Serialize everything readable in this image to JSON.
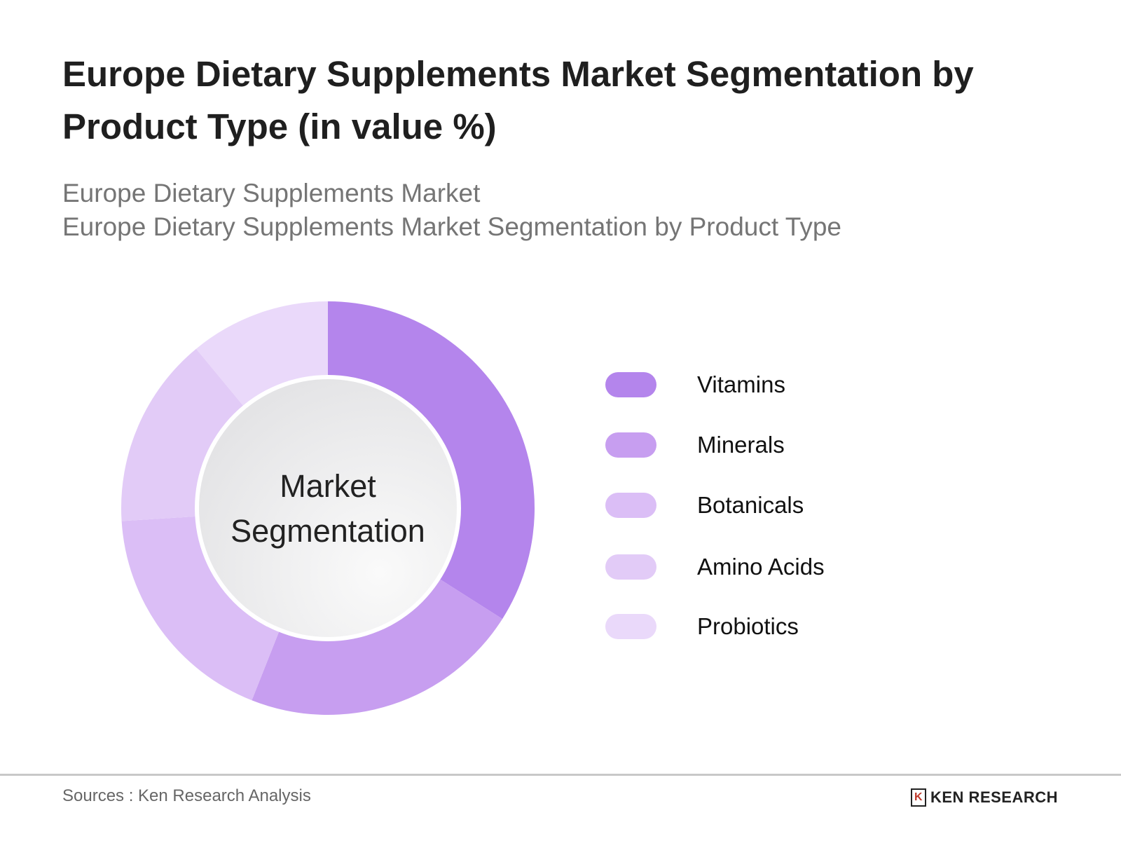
{
  "title": "Europe Dietary Supplements Market Segmentation by Product Type (in value %)",
  "subtitle_1": "Europe Dietary Supplements Market",
  "subtitle_2": "Europe Dietary Supplements Market Segmentation by Product Type",
  "center_label_1": "Market",
  "center_label_2": "Segmentation",
  "source": "Sources : Ken Research Analysis",
  "logo_text": "KEN RESEARCH",
  "chart_data": {
    "type": "pie",
    "variant": "donut",
    "title": "Europe Dietary Supplements Market Segmentation by Product Type (in value %)",
    "categories": [
      "Vitamins",
      "Minerals",
      "Botanicals",
      "Amino Acids",
      "Probiotics"
    ],
    "values": [
      34,
      22,
      18,
      15,
      11
    ],
    "colors": [
      "#b485ec",
      "#c79ef0",
      "#dbbef6",
      "#e2cbf7",
      "#ead9fa"
    ],
    "legend_position": "right"
  }
}
